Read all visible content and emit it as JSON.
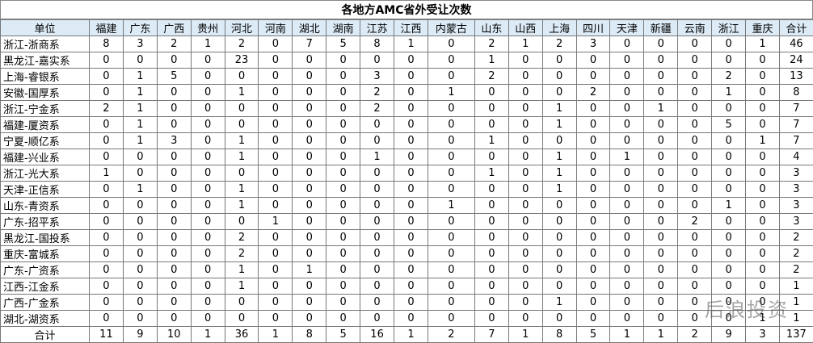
{
  "title": "各地方AMC省外受让次数",
  "table": {
    "header": [
      "单位",
      "福建",
      "广东",
      "广西",
      "贵州",
      "河北",
      "河南",
      "湖北",
      "湖南",
      "江苏",
      "江西",
      "内蒙古",
      "山东",
      "山西",
      "上海",
      "四川",
      "天津",
      "新疆",
      "云南",
      "浙江",
      "重庆",
      "合计"
    ],
    "rows": [
      [
        "浙江-浙商系",
        8,
        3,
        2,
        1,
        2,
        0,
        7,
        5,
        8,
        1,
        0,
        2,
        1,
        2,
        3,
        0,
        0,
        0,
        0,
        1,
        46
      ],
      [
        "黑龙江-嘉实系",
        0,
        0,
        0,
        0,
        23,
        0,
        0,
        0,
        0,
        0,
        0,
        1,
        0,
        0,
        0,
        0,
        0,
        0,
        0,
        0,
        24
      ],
      [
        "上海-睿银系",
        0,
        1,
        5,
        0,
        0,
        0,
        0,
        0,
        3,
        0,
        0,
        2,
        0,
        0,
        0,
        0,
        0,
        0,
        2,
        0,
        13
      ],
      [
        "安徽-国厚系",
        0,
        1,
        0,
        0,
        1,
        0,
        0,
        0,
        2,
        0,
        1,
        0,
        0,
        0,
        2,
        0,
        0,
        0,
        1,
        0,
        8
      ],
      [
        "浙江-宁金系",
        2,
        1,
        0,
        0,
        0,
        0,
        0,
        0,
        2,
        0,
        0,
        0,
        0,
        1,
        0,
        0,
        1,
        0,
        0,
        0,
        7
      ],
      [
        "福建-厦资系",
        0,
        1,
        0,
        0,
        0,
        0,
        0,
        0,
        0,
        0,
        0,
        0,
        0,
        1,
        0,
        0,
        0,
        0,
        5,
        0,
        7
      ],
      [
        "宁夏-顺亿系",
        0,
        1,
        3,
        0,
        1,
        0,
        0,
        0,
        0,
        0,
        0,
        1,
        0,
        0,
        0,
        0,
        0,
        0,
        0,
        1,
        7
      ],
      [
        "福建-兴业系",
        0,
        0,
        0,
        0,
        1,
        0,
        0,
        0,
        1,
        0,
        0,
        0,
        0,
        1,
        0,
        1,
        0,
        0,
        0,
        0,
        4
      ],
      [
        "浙江-光大系",
        1,
        0,
        0,
        0,
        0,
        0,
        0,
        0,
        0,
        0,
        0,
        1,
        0,
        1,
        0,
        0,
        0,
        0,
        0,
        0,
        3
      ],
      [
        "天津-正信系",
        0,
        1,
        0,
        0,
        1,
        0,
        0,
        0,
        0,
        0,
        0,
        0,
        0,
        1,
        0,
        0,
        0,
        0,
        0,
        0,
        3
      ],
      [
        "山东-青资系",
        0,
        0,
        0,
        0,
        1,
        0,
        0,
        0,
        0,
        0,
        1,
        0,
        0,
        0,
        0,
        0,
        0,
        0,
        1,
        0,
        3
      ],
      [
        "广东-招平系",
        0,
        0,
        0,
        0,
        0,
        1,
        0,
        0,
        0,
        0,
        0,
        0,
        0,
        0,
        0,
        0,
        0,
        2,
        0,
        0,
        3
      ],
      [
        "黑龙江-国投系",
        0,
        0,
        0,
        0,
        2,
        0,
        0,
        0,
        0,
        0,
        0,
        0,
        0,
        0,
        0,
        0,
        0,
        0,
        0,
        0,
        2
      ],
      [
        "重庆-富城系",
        0,
        0,
        0,
        0,
        2,
        0,
        0,
        0,
        0,
        0,
        0,
        0,
        0,
        0,
        0,
        0,
        0,
        0,
        0,
        0,
        2
      ],
      [
        "广东-广资系",
        0,
        0,
        0,
        0,
        1,
        0,
        1,
        0,
        0,
        0,
        0,
        0,
        0,
        0,
        0,
        0,
        0,
        0,
        0,
        0,
        2
      ],
      [
        "江西-江金系",
        0,
        0,
        0,
        0,
        1,
        0,
        0,
        0,
        0,
        0,
        0,
        0,
        0,
        0,
        0,
        0,
        0,
        0,
        0,
        0,
        1
      ],
      [
        "广西-广金系",
        0,
        0,
        0,
        0,
        0,
        0,
        0,
        0,
        0,
        0,
        0,
        0,
        0,
        1,
        0,
        0,
        0,
        0,
        0,
        0,
        1
      ],
      [
        "湖北-湖资系",
        0,
        0,
        0,
        0,
        0,
        0,
        0,
        0,
        0,
        0,
        0,
        0,
        0,
        0,
        0,
        0,
        0,
        0,
        0,
        1,
        1
      ]
    ],
    "total": [
      "合计",
      11,
      9,
      10,
      1,
      36,
      1,
      8,
      5,
      16,
      1,
      2,
      7,
      1,
      8,
      5,
      1,
      1,
      2,
      9,
      3,
      137
    ]
  },
  "watermark": "后浪投资"
}
